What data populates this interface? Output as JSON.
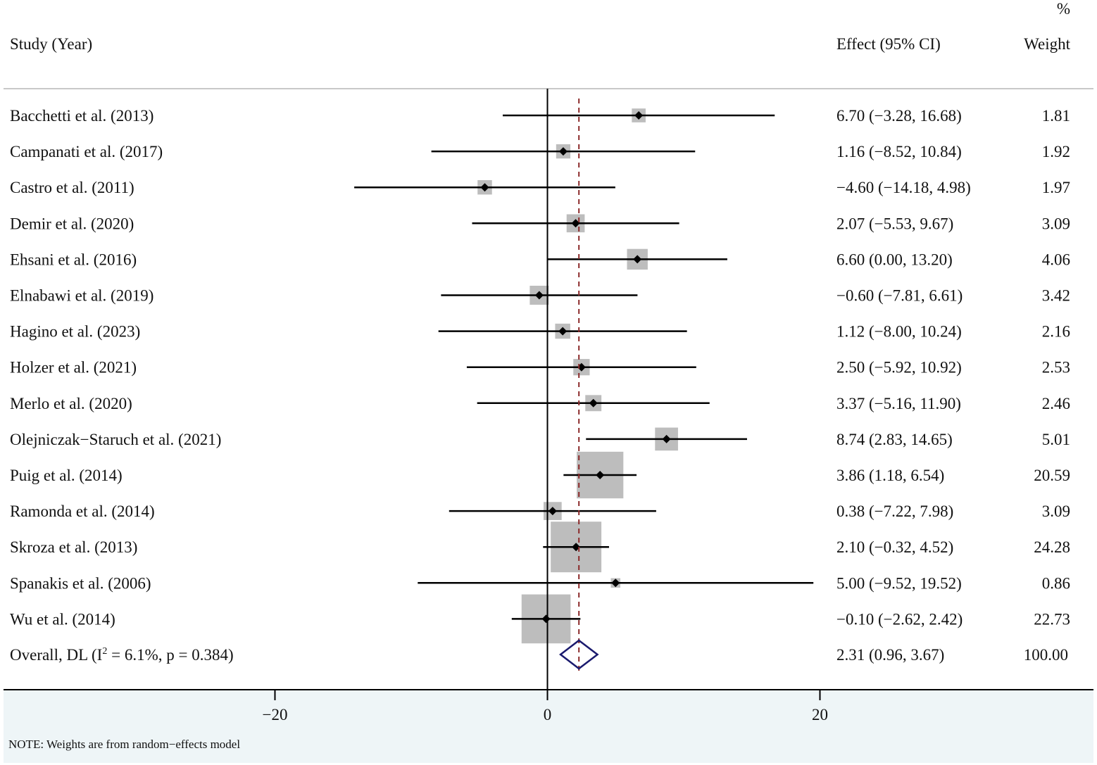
{
  "chart_data": {
    "type": "forest",
    "headers": {
      "study": "Study (Year)",
      "effect": "Effect (95% CI)",
      "weight_top": "%",
      "weight": "Weight"
    },
    "studies": [
      {
        "label": "Bacchetti et al. (2013)",
        "effect": 6.7,
        "lower": -3.28,
        "upper": 16.68,
        "ci_text": "6.70 (−3.28, 16.68)",
        "weight": 1.81,
        "weight_text": "1.81"
      },
      {
        "label": "Campanati et al. (2017)",
        "effect": 1.16,
        "lower": -8.52,
        "upper": 10.84,
        "ci_text": "1.16 (−8.52, 10.84)",
        "weight": 1.92,
        "weight_text": "1.92"
      },
      {
        "label": "Castro et al. (2011)",
        "effect": -4.6,
        "lower": -14.18,
        "upper": 4.98,
        "ci_text": "−4.60 (−14.18, 4.98)",
        "weight": 1.97,
        "weight_text": "1.97"
      },
      {
        "label": "Demir et al. (2020)",
        "effect": 2.07,
        "lower": -5.53,
        "upper": 9.67,
        "ci_text": "2.07 (−5.53, 9.67)",
        "weight": 3.09,
        "weight_text": "3.09"
      },
      {
        "label": "Ehsani et al. (2016)",
        "effect": 6.6,
        "lower": 0.0,
        "upper": 13.2,
        "ci_text": "6.60 (0.00, 13.20)",
        "weight": 4.06,
        "weight_text": "4.06"
      },
      {
        "label": "Elnabawi et al. (2019)",
        "effect": -0.6,
        "lower": -7.81,
        "upper": 6.61,
        "ci_text": "−0.60 (−7.81, 6.61)",
        "weight": 3.42,
        "weight_text": "3.42"
      },
      {
        "label": "Hagino et al.  (2023)",
        "effect": 1.12,
        "lower": -8.0,
        "upper": 10.24,
        "ci_text": "1.12 (−8.00, 10.24)",
        "weight": 2.16,
        "weight_text": "2.16"
      },
      {
        "label": "Holzer et al. (2021)",
        "effect": 2.5,
        "lower": -5.92,
        "upper": 10.92,
        "ci_text": "2.50 (−5.92, 10.92)",
        "weight": 2.53,
        "weight_text": "2.53"
      },
      {
        "label": "Merlo et al. (2020)",
        "effect": 3.37,
        "lower": -5.16,
        "upper": 11.9,
        "ci_text": "3.37 (−5.16, 11.90)",
        "weight": 2.46,
        "weight_text": "2.46"
      },
      {
        "label": "Olejniczak−Staruch et al. (2021)",
        "effect": 8.74,
        "lower": 2.83,
        "upper": 14.65,
        "ci_text": "8.74 (2.83, 14.65)",
        "weight": 5.01,
        "weight_text": "5.01"
      },
      {
        "label": "Puig et al. (2014)",
        "effect": 3.86,
        "lower": 1.18,
        "upper": 6.54,
        "ci_text": "3.86 (1.18, 6.54)",
        "weight": 20.59,
        "weight_text": "20.59"
      },
      {
        "label": "Ramonda et al. (2014)",
        "effect": 0.38,
        "lower": -7.22,
        "upper": 7.98,
        "ci_text": "0.38 (−7.22, 7.98)",
        "weight": 3.09,
        "weight_text": "3.09"
      },
      {
        "label": "Skroza et al. (2013)",
        "effect": 2.1,
        "lower": -0.32,
        "upper": 4.52,
        "ci_text": "2.10 (−0.32, 4.52)",
        "weight": 24.28,
        "weight_text": "24.28"
      },
      {
        "label": "Spanakis et al. (2006)",
        "effect": 5.0,
        "lower": -9.52,
        "upper": 19.52,
        "ci_text": "5.00 (−9.52, 19.52)",
        "weight": 0.86,
        "weight_text": "0.86"
      },
      {
        "label": "Wu et al. (2014)",
        "effect": -0.1,
        "lower": -2.62,
        "upper": 2.42,
        "ci_text": "−0.10 (−2.62, 2.42)",
        "weight": 22.73,
        "weight_text": "22.73"
      }
    ],
    "overall": {
      "label_prefix": "Overall, DL (I",
      "label_sup": "2",
      "label_suffix": " = 6.1%, p = 0.384)",
      "effect": 2.31,
      "lower": 0.96,
      "upper": 3.67,
      "ci_text": "2.31 (0.96, 3.67)",
      "weight_text": "100.00"
    },
    "x_axis": {
      "ticks": [
        -20,
        0,
        20
      ],
      "tick_labels": [
        "−20",
        "0",
        "20"
      ],
      "range": [
        -20,
        20
      ]
    },
    "null_line": 0,
    "note": "NOTE: Weights are from random−effects model"
  },
  "colors": {
    "box": "#bdbdbd",
    "line": "#000000",
    "dashed": "#8b2a2a",
    "diamond": "#1a1a6e",
    "footer_bg": "#eef5f7",
    "rule": "#c8c8c8"
  }
}
